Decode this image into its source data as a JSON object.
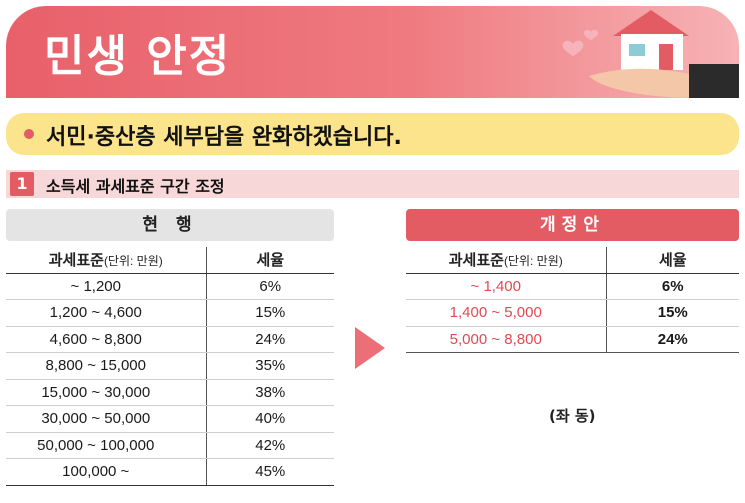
{
  "banner": {
    "title": "민생 안정"
  },
  "subtitle": "서민·중산층 세부담을 완화하겠습니다.",
  "section": {
    "number": "1",
    "title": "소득세 과세표준 구간 조정"
  },
  "current": {
    "heading": "현 행",
    "col_bracket": "과세표준",
    "col_unit": "(단위: 만원)",
    "col_rate": "세율",
    "rows": [
      {
        "bracket": "~ 1,200",
        "rate": "6%"
      },
      {
        "bracket": "1,200 ~ 4,600",
        "rate": "15%"
      },
      {
        "bracket": "4,600 ~ 8,800",
        "rate": "24%"
      },
      {
        "bracket": "8,800 ~ 15,000",
        "rate": "35%"
      },
      {
        "bracket": "15,000 ~ 30,000",
        "rate": "38%"
      },
      {
        "bracket": "30,000 ~ 50,000",
        "rate": "40%"
      },
      {
        "bracket": "50,000 ~ 100,000",
        "rate": "42%"
      },
      {
        "bracket": "100,000 ~",
        "rate": "45%"
      }
    ]
  },
  "reform": {
    "heading": "개정안",
    "col_bracket": "과세표준",
    "col_unit": "(단위: 만원)",
    "col_rate": "세율",
    "rows": [
      {
        "bracket": "~ 1,400",
        "rate": "6%"
      },
      {
        "bracket": "1,400 ~ 5,000",
        "rate": "15%"
      },
      {
        "bracket": "5,000 ~ 8,800",
        "rate": "24%"
      }
    ],
    "note": "(좌 동)"
  },
  "colors": {
    "accent": "#e35b63",
    "highlight": "#fbe48c",
    "section_bg": "#f8d7d8",
    "reform_text": "#e04a52"
  },
  "icons": [
    "house-in-hand-icon",
    "heart-icon",
    "arrow-right-icon"
  ]
}
